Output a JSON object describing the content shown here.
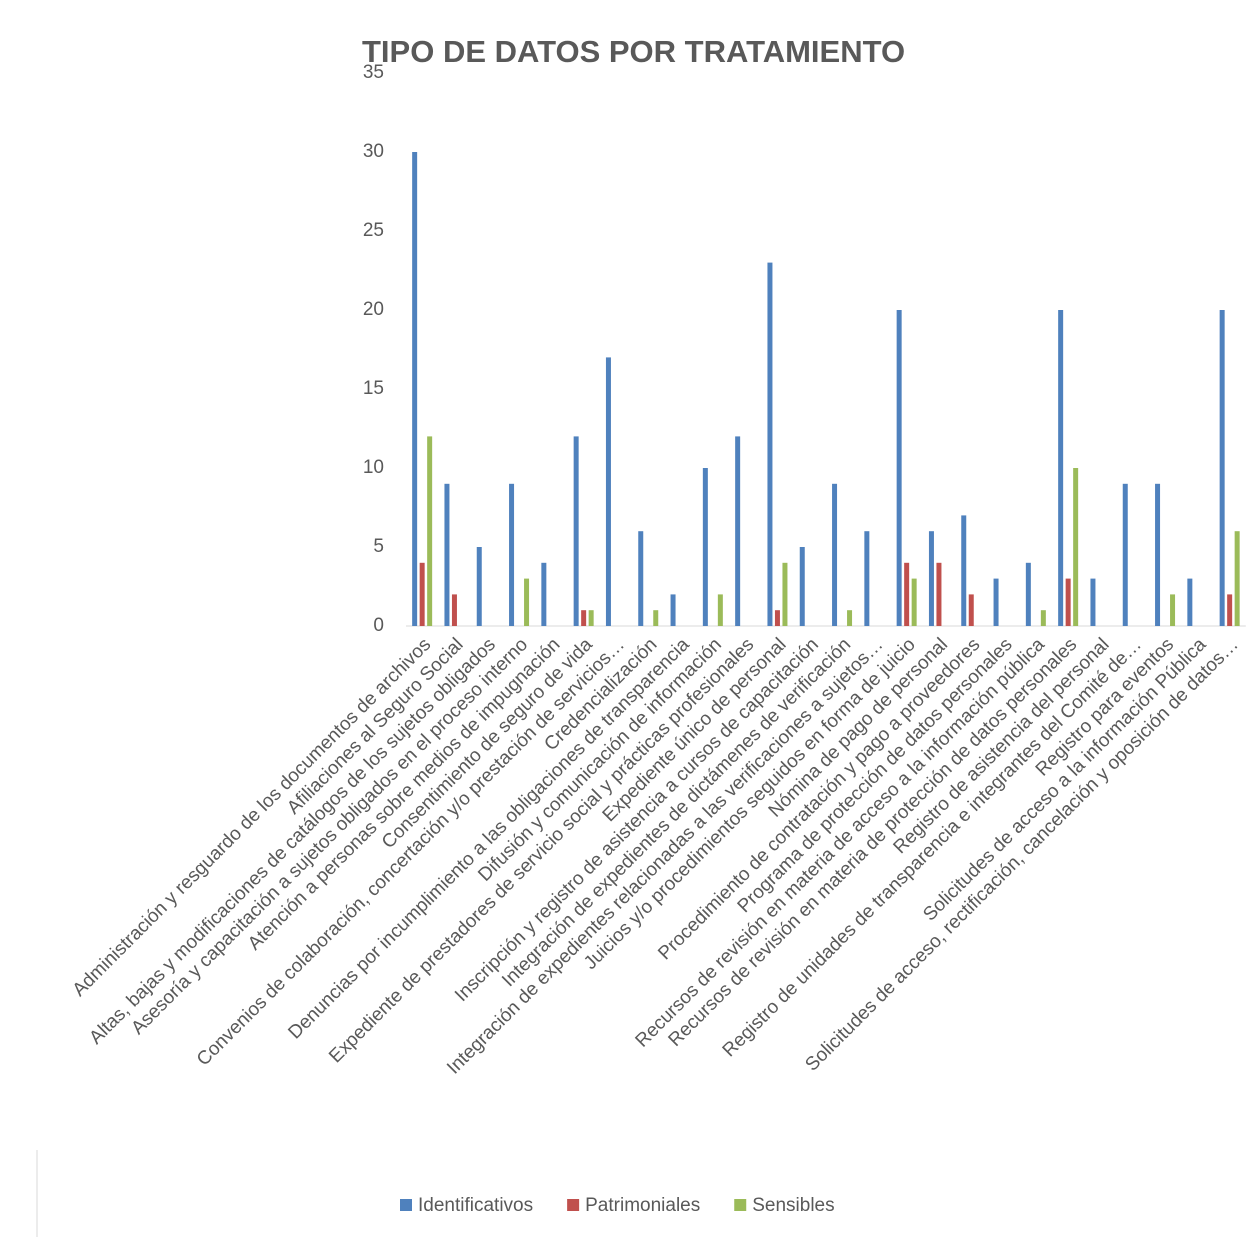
{
  "chart_data": {
    "type": "bar",
    "title": "TIPO DE DATOS POR TRATAMIENTO",
    "categories": [
      "Administración y resguardo de los documentos de archivos",
      "Afiliaciones al Seguro Social",
      "Altas, bajas y modificaciones de catálogos de los sujetos obligados",
      "Asesoría y capacitación a sujetos obligados en el proceso interno",
      "Atención a personas sobre medios de impugnación",
      "Consentimiento de seguro de vida",
      "Convenios de colaboración, concertación y/o prestación de servicios…",
      "Credencialización",
      "Denuncias por incumplimiento a las obligaciones de transparencia",
      "Difusión y comunicación de información",
      "Expediente de prestadores de servicio social y prácticas profesionales",
      "Expediente único de personal",
      "Inscripción y registro de asistencia a cursos de capacitación",
      "Integración de expedientes de dictámenes de verificación",
      "Integración de expedientes relacionadas a las verificaciones a sujetos…",
      "Juicios y/o procedimientos seguidos en forma de juicio",
      "Nómina de pago de personal",
      "Procedimiento de contratación y pago a proveedores",
      "Programa de protección de datos personales",
      "Recursos de revisión en materia de acceso a la información pública",
      "Recursos de revisión en materia de protección de datos personales",
      "Registro de asistencia del personal",
      "Registro de unidades de transparencia e integrantes del Comité de…",
      "Registro para eventos",
      "Solicitudes de acceso a la información Pública",
      "Solicitudes de acceso, rectificación, cancelación y oposición de datos…"
    ],
    "series": [
      {
        "name": "Identificativos",
        "color": "#4f81bd",
        "values": [
          30,
          9,
          5,
          9,
          4,
          12,
          17,
          6,
          2,
          10,
          12,
          23,
          5,
          9,
          6,
          20,
          6,
          7,
          3,
          4,
          20,
          3,
          9,
          9,
          3,
          20
        ]
      },
      {
        "name": "Patrimoniales",
        "color": "#c0504d",
        "values": [
          4,
          2,
          null,
          null,
          null,
          1,
          null,
          null,
          null,
          null,
          null,
          1,
          null,
          null,
          null,
          4,
          4,
          2,
          null,
          null,
          3,
          null,
          null,
          null,
          null,
          2
        ]
      },
      {
        "name": "Sensibles",
        "color": "#9bbb59",
        "values": [
          12,
          null,
          null,
          3,
          null,
          1,
          null,
          1,
          null,
          2,
          null,
          4,
          null,
          1,
          null,
          3,
          null,
          null,
          null,
          1,
          10,
          null,
          null,
          2,
          null,
          6
        ]
      }
    ],
    "ylim": [
      0,
      35
    ],
    "yticks": [
      0,
      5,
      10,
      15,
      20,
      25,
      30,
      35
    ],
    "grid": false,
    "legend": "bottom"
  }
}
